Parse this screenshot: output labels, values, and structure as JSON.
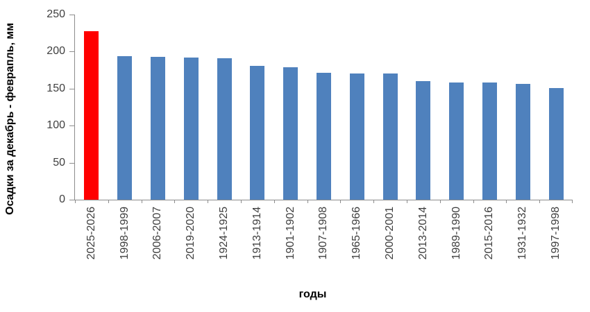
{
  "chart_data": {
    "type": "bar",
    "title": "",
    "xlabel": "годы",
    "ylabel": "Осадки за декабрь - феврапль, мм",
    "categories": [
      "2025-2026",
      "1998-1999",
      "2006-2007",
      "2019-2020",
      "1924-1925",
      "1913-1914",
      "1901-1902",
      "1907-1908",
      "1965-1966",
      "2000-2001",
      "2013-2014",
      "1989-1990",
      "2015-2016",
      "1931-1932",
      "1997-1998"
    ],
    "values": [
      228,
      194,
      193,
      192,
      191,
      181,
      179,
      171,
      170,
      170,
      160,
      158,
      158,
      156,
      151
    ],
    "ylim": [
      0,
      250
    ],
    "yticks": [
      0,
      50,
      100,
      150,
      200,
      250
    ],
    "grid": false,
    "legend_position": "none",
    "bar_color": "#4f81bd",
    "highlight_index": 0,
    "highlight_color": "#ff0000",
    "axis_color": "#8c8c8c",
    "tick_label_color": "#3f3f3f"
  }
}
